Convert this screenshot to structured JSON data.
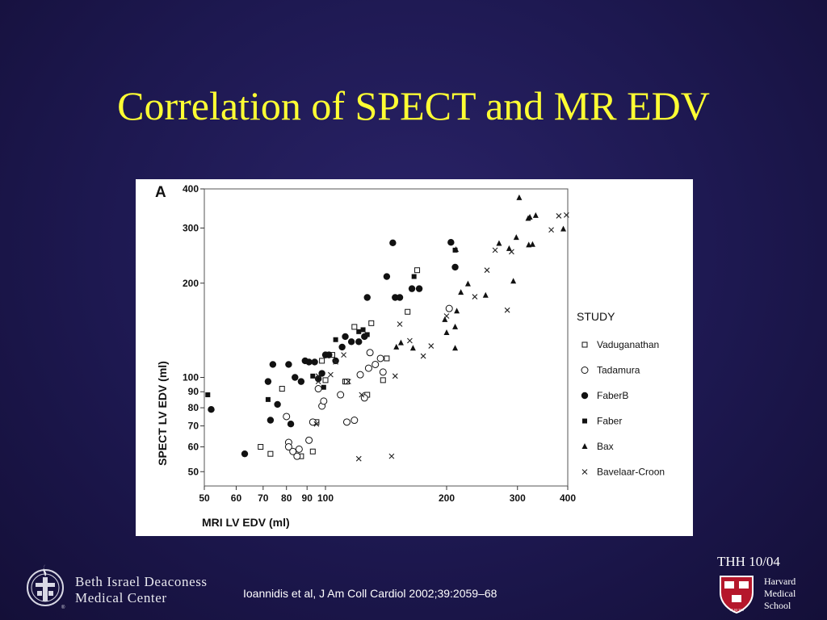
{
  "slide": {
    "title": "Correlation of SPECT and MR EDV",
    "footer_tag": "THH 10/04",
    "citation": "Ioannidis et al, J Am Coll Cardiol 2002;39:2059–68",
    "left_logo": {
      "name_line1": "Beth Israel Deaconess",
      "name_line2": "Medical Center",
      "icon": "bidmc-seal-icon",
      "registered": "®"
    },
    "right_logo": {
      "line1": "Harvard",
      "line2": "Medical",
      "line3": "School",
      "icon": "harvard-shield-icon",
      "shield_text": "VE RI TAS"
    }
  },
  "colors": {
    "background": "#1d1850",
    "title": "#ffff33",
    "panel": "#ffffff"
  },
  "chart_data": {
    "type": "scatter",
    "panel_letter": "A",
    "xlabel": "MRI LV EDV (ml)",
    "ylabel": "SPECT LV EDV (ml)",
    "xscale": "log",
    "yscale": "log",
    "xlim": [
      50,
      400
    ],
    "ylim": [
      45,
      400
    ],
    "x_ticks": [
      50,
      60,
      70,
      80,
      90,
      100,
      200,
      300,
      400
    ],
    "x_tick_labels": [
      "50",
      "60",
      "70",
      "80",
      "90",
      "100",
      "200",
      "300",
      "400"
    ],
    "y_ticks": [
      50,
      60,
      70,
      80,
      90,
      100,
      200,
      300,
      400
    ],
    "y_tick_labels": [
      "50",
      "60",
      "70",
      "80",
      "90",
      "100",
      "200",
      "300",
      "400"
    ],
    "grid": false,
    "legend_title": "STUDY",
    "legend_position": "right",
    "series": [
      {
        "name": "Vaduganathan",
        "marker": "open-square",
        "x": [
          69,
          73,
          78,
          87,
          93,
          95,
          98,
          100,
          104,
          112,
          113,
          118,
          127,
          130,
          139,
          142,
          160,
          169
        ],
        "y": [
          60,
          57,
          92,
          56,
          58,
          72,
          113,
          98,
          118,
          97,
          97,
          145,
          88,
          149,
          98,
          115,
          162,
          220
        ]
      },
      {
        "name": "Tadamura",
        "marker": "open-circle",
        "x": [
          80,
          81,
          81,
          83,
          85,
          86,
          91,
          93,
          96,
          98,
          99,
          109,
          113,
          118,
          122,
          125,
          128,
          129,
          133,
          137,
          139,
          203
        ],
        "y": [
          75,
          62,
          60,
          58,
          56,
          59,
          63,
          72,
          92,
          81,
          84,
          88,
          72,
          73,
          102,
          86,
          107,
          120,
          110,
          115,
          104,
          166
        ]
      },
      {
        "name": "FaberB",
        "marker": "filled-circle",
        "x": [
          52,
          63,
          72,
          73,
          74,
          76,
          81,
          82,
          84,
          87,
          89,
          91,
          94,
          96,
          98,
          100,
          102,
          106,
          110,
          112,
          116,
          121,
          125,
          127,
          142,
          147,
          149,
          153,
          164,
          171,
          205,
          210
        ],
        "y": [
          79,
          57,
          97,
          73,
          110,
          82,
          110,
          71,
          100,
          97,
          113,
          112,
          112,
          99,
          103,
          118,
          118,
          113,
          125,
          135,
          130,
          130,
          135,
          180,
          210,
          269,
          180,
          180,
          192,
          192,
          270,
          225
        ]
      },
      {
        "name": "Faber",
        "marker": "filled-square",
        "x": [
          51,
          72,
          93,
          99,
          106,
          121,
          124,
          127,
          166,
          210
        ],
        "y": [
          88,
          85,
          101,
          93,
          132,
          140,
          142,
          137,
          210,
          255
        ]
      },
      {
        "name": "Bax",
        "marker": "filled-triangle",
        "x": [
          150,
          154,
          165,
          198,
          200,
          210,
          210,
          211,
          212,
          217,
          226,
          250,
          270,
          286,
          293,
          298,
          303,
          319,
          320,
          322,
          327,
          333,
          390
        ],
        "y": [
          125,
          129,
          124,
          153,
          139,
          145,
          124,
          256,
          163,
          187,
          199,
          183,
          268,
          258,
          203,
          280,
          375,
          322,
          265,
          325,
          266,
          329,
          298
        ]
      },
      {
        "name": "Bavelaar-Croon",
        "marker": "cross",
        "x": [
          95,
          96,
          96,
          103,
          106,
          111,
          114,
          121,
          123,
          146,
          149,
          153,
          162,
          175,
          183,
          200,
          235,
          252,
          264,
          283,
          290,
          364,
          380,
          397
        ],
        "y": [
          71,
          97,
          101,
          102,
          112,
          118,
          97,
          55,
          88,
          56,
          101,
          148,
          131,
          117,
          126,
          157,
          181,
          220,
          255,
          164,
          252,
          296,
          328,
          330
        ]
      }
    ]
  }
}
